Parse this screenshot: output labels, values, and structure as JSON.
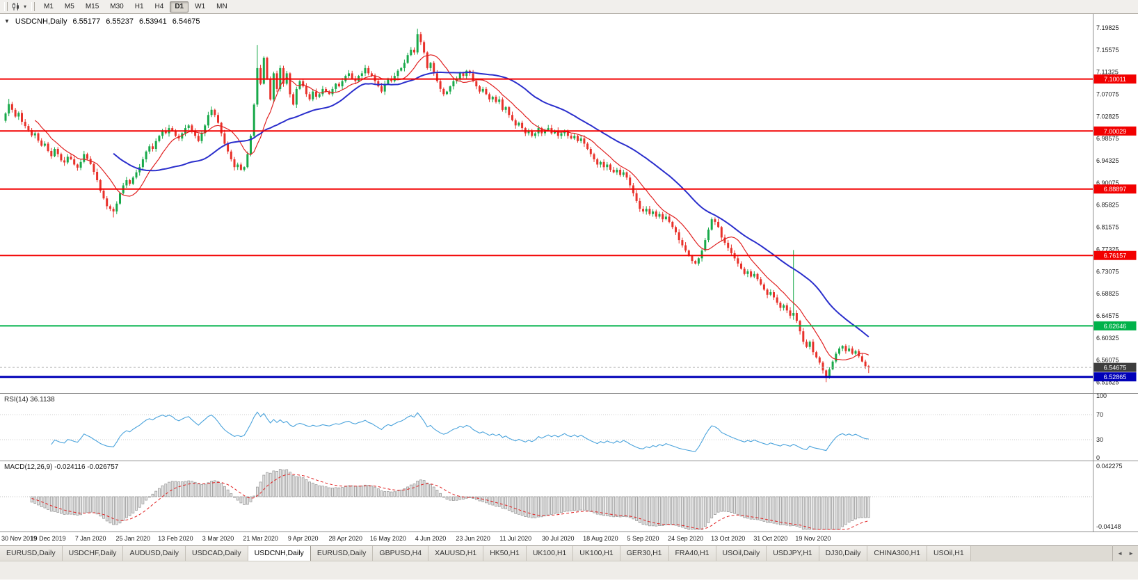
{
  "toolbar": {
    "timeframes": [
      "M1",
      "M5",
      "M15",
      "M30",
      "H1",
      "H4",
      "D1",
      "W1",
      "MN"
    ],
    "active_timeframe": "D1"
  },
  "icons": {
    "chart_collapse": "▼",
    "chart_type_caret": "▾",
    "tab_scroll_left": "◄",
    "tab_scroll_right": "►"
  },
  "chart_header": {
    "symbol": "USDCNH,Daily",
    "open": "6.55177",
    "high": "6.55237",
    "low": "6.53941",
    "close": "6.54675"
  },
  "chart_data": {
    "type": "candlestick",
    "title": "USDCNH Daily chart with RSI and MACD",
    "x_label_step": 13,
    "x_labels": [
      "30 Nov 2019",
      "19 Dec 2019",
      "7 Jan 2020",
      "25 Jan 2020",
      "13 Feb 2020",
      "3 Mar 2020",
      "21 Mar 2020",
      "9 Apr 2020",
      "28 Apr 2020",
      "16 May 2020",
      "4 Jun 2020",
      "23 Jun 2020",
      "11 Jul 2020",
      "30 Jul 2020",
      "18 Aug 2020",
      "5 Sep 2020",
      "24 Sep 2020",
      "13 Oct 2020",
      "31 Oct 2020",
      "19 Nov 2020"
    ],
    "first_open": 7.02,
    "closes": [
      7.034,
      7.052,
      7.041,
      7.028,
      7.035,
      7.018,
      7.01,
      7.002,
      6.992,
      6.996,
      6.982,
      6.972,
      6.976,
      6.962,
      6.952,
      6.966,
      6.956,
      6.944,
      6.94,
      6.951,
      6.946,
      6.936,
      6.93,
      6.941,
      6.956,
      6.947,
      6.937,
      6.922,
      6.906,
      6.886,
      6.871,
      6.856,
      6.851,
      6.846,
      6.861,
      6.881,
      6.896,
      6.906,
      6.899,
      6.911,
      6.921,
      6.931,
      6.946,
      6.961,
      6.971,
      6.966,
      6.981,
      6.991,
      7.001,
      6.996,
      7.006,
      7.001,
      6.991,
      6.986,
      6.996,
      7.006,
      7.011,
      7.001,
      6.991,
      6.981,
      6.996,
      7.011,
      7.031,
      7.041,
      7.031,
      7.016,
      6.996,
      6.976,
      6.961,
      6.946,
      6.931,
      6.936,
      6.926,
      6.931,
      6.956,
      6.991,
      7.051,
      7.121,
      7.091,
      7.141,
      7.101,
      7.061,
      7.111,
      7.081,
      7.121,
      7.091,
      7.111,
      7.071,
      7.051,
      7.081,
      7.096,
      7.086,
      7.071,
      7.061,
      7.076,
      7.066,
      7.071,
      7.081,
      7.076,
      7.071,
      7.081,
      7.091,
      7.086,
      7.096,
      7.106,
      7.111,
      7.101,
      7.096,
      7.106,
      7.111,
      7.121,
      7.111,
      7.106,
      7.096,
      7.086,
      7.076,
      7.091,
      7.101,
      7.096,
      7.106,
      7.116,
      7.121,
      7.131,
      7.146,
      7.156,
      7.151,
      7.186,
      7.171,
      7.151,
      7.121,
      7.131,
      7.111,
      7.096,
      7.081,
      7.071,
      7.076,
      7.086,
      7.096,
      7.101,
      7.111,
      7.106,
      7.116,
      7.111,
      7.096,
      7.086,
      7.076,
      7.081,
      7.071,
      7.061,
      7.066,
      7.056,
      7.061,
      7.041,
      7.046,
      7.031,
      7.021,
      7.011,
      7.016,
      7.006,
      6.996,
      7.001,
      6.991,
      6.996,
      7.006,
      6.996,
      7.001,
      7.006,
      6.996,
      7.001,
      6.991,
      6.996,
      7.001,
      6.991,
      6.986,
      6.991,
      6.981,
      6.986,
      6.976,
      6.966,
      6.956,
      6.946,
      6.936,
      6.941,
      6.931,
      6.936,
      6.926,
      6.921,
      6.926,
      6.916,
      6.921,
      6.911,
      6.896,
      6.881,
      6.866,
      6.851,
      6.846,
      6.851,
      6.841,
      6.846,
      6.836,
      6.841,
      6.831,
      6.836,
      6.826,
      6.816,
      6.806,
      6.791,
      6.781,
      6.771,
      6.761,
      6.751,
      6.746,
      6.756,
      6.771,
      6.791,
      6.811,
      6.831,
      6.826,
      6.816,
      6.796,
      6.786,
      6.776,
      6.766,
      6.756,
      6.746,
      6.736,
      6.726,
      6.731,
      6.721,
      6.726,
      6.716,
      6.706,
      6.696,
      6.686,
      6.691,
      6.681,
      6.671,
      6.661,
      6.666,
      6.656,
      6.646,
      6.651,
      6.636,
      6.616,
      6.596,
      6.586,
      6.596,
      6.576,
      6.566,
      6.556,
      6.541,
      6.528,
      6.543,
      6.558,
      6.573,
      6.583,
      6.588,
      6.578,
      6.583,
      6.573,
      6.578,
      6.568,
      6.558,
      6.549,
      6.547
    ],
    "wick_overrides": {
      "1": {
        "high": 7.062
      },
      "33": {
        "low": 6.8345
      },
      "77": {
        "high": 7.165
      },
      "126": {
        "high": 7.1965
      },
      "241": {
        "high": 6.772,
        "low": 6.638
      },
      "251": {
        "low": 6.5185
      },
      "264": {
        "low": 6.536
      }
    },
    "y_axis_labels": [
      "7.19825",
      "7.15575",
      "7.11325",
      "7.07075",
      "7.02825",
      "6.98575",
      "6.94325",
      "6.90075",
      "6.85825",
      "6.81575",
      "6.77325",
      "6.73075",
      "6.68825",
      "6.64575",
      "6.60325",
      "6.56075",
      "6.51825"
    ],
    "y_range": {
      "max": 7.225,
      "min": 6.4975
    },
    "colors": {
      "up": "#18a94a",
      "down": "#e8312a",
      "axis_text": "#1a1a1a"
    },
    "moving_averages": [
      {
        "name": "ma-fast",
        "period": 10,
        "color": "#e02020",
        "width": 1.2
      },
      {
        "name": "ma-slow",
        "period": 34,
        "color": "#2a2ecc",
        "width": 2
      }
    ],
    "hlines": [
      {
        "price": 7.10011,
        "label": "7.10011",
        "color": "#f20000",
        "width": 2
      },
      {
        "price": 7.00029,
        "label": "7.00029",
        "color": "#f20000",
        "width": 2
      },
      {
        "price": 6.88897,
        "label": "6.88897",
        "color": "#f20000",
        "width": 2
      },
      {
        "price": 6.76157,
        "label": "6.76157",
        "color": "#f20000",
        "width": 2
      },
      {
        "price": 6.62646,
        "label": "6.62646",
        "color": "#00b24a",
        "width": 2
      },
      {
        "price": 6.52865,
        "label": "6.52865",
        "color": "#0000b8",
        "width": 3
      }
    ],
    "current_price": {
      "value": 6.54675,
      "label": "6.54675",
      "badge_bg": "#3d3d3d"
    },
    "rsi": {
      "label": "RSI(14) 36.1138",
      "period": 14,
      "value": 36.1138,
      "axis_labels": [
        100,
        70,
        30,
        0
      ],
      "levels": [
        70,
        30
      ],
      "color": "#4aa3dc"
    },
    "macd": {
      "label": "MACD(12,26,9) -0.024116 -0.026757",
      "fast": 12,
      "slow": 26,
      "signal": 9,
      "value": -0.024116,
      "signal_value": -0.026757,
      "axis_max": 0.042275,
      "axis_min": -0.04148,
      "axis_max_label": "0.042275",
      "axis_min_label": "-0.04148",
      "hist_fill": "#e4e4e4",
      "hist_stroke": "#9a9a9a",
      "signal_color": "#e02020"
    }
  },
  "tabs": {
    "items": [
      "EURUSD,Daily",
      "USDCHF,Daily",
      "AUDUSD,Daily",
      "USDCAD,Daily",
      "USDCNH,Daily",
      "EURUSD,Daily",
      "GBPUSD,H4",
      "XAUUSD,H1",
      "HK50,H1",
      "UK100,H1",
      "UK100,H1",
      "GER30,H1",
      "FRA40,H1",
      "USOil,Daily",
      "USDJPY,H1",
      "DJ30,Daily",
      "CHINA300,H1",
      "USOil,H1"
    ],
    "active_index": 4
  }
}
